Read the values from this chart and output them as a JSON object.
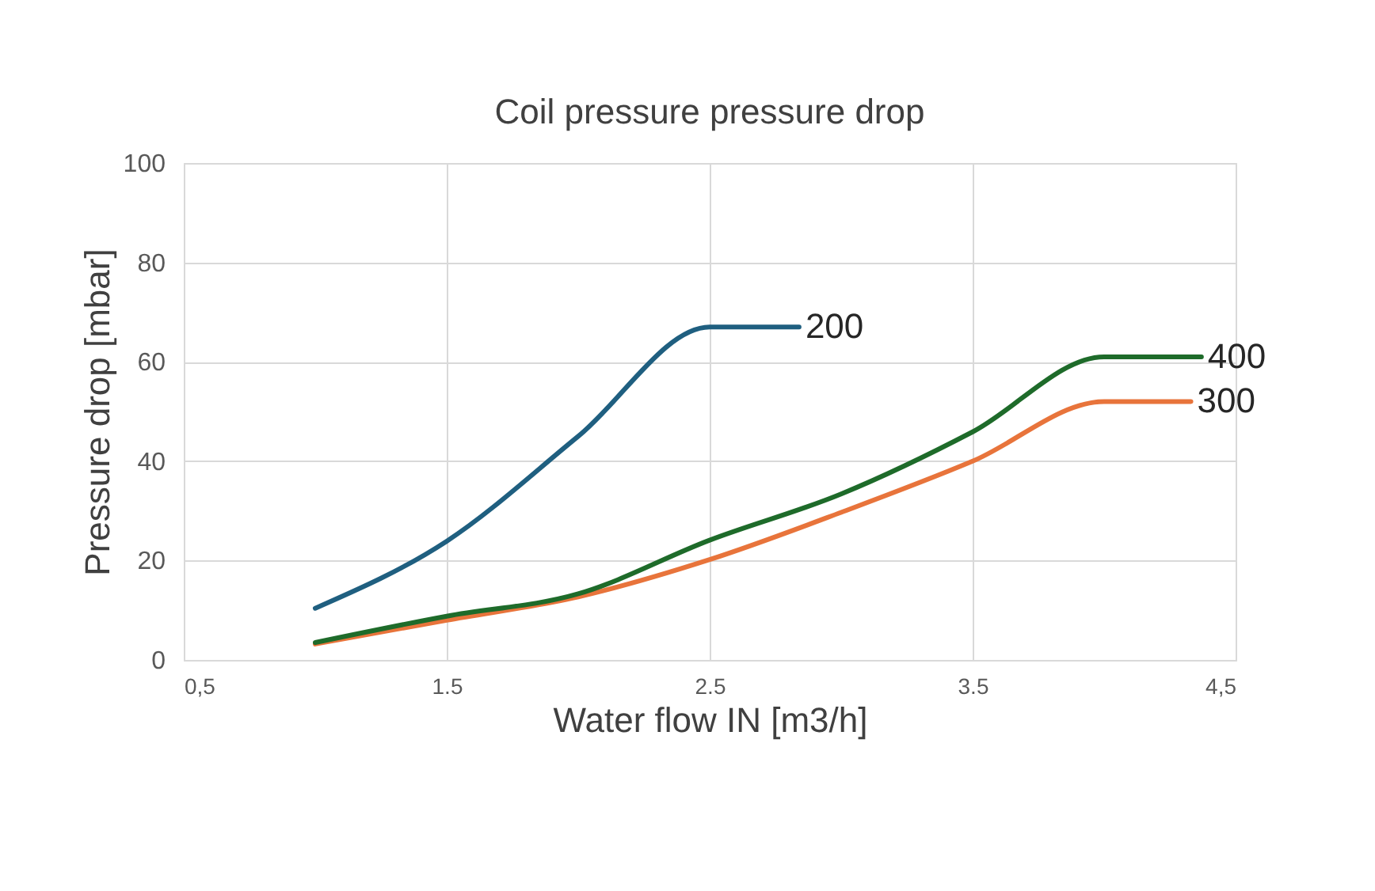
{
  "chart_data": {
    "type": "line",
    "title": "Coil pressure pressure drop",
    "xlabel": "Water flow IN [m3/h]",
    "ylabel": "Pressure drop [mbar]",
    "xlim": [
      0.5,
      4.5
    ],
    "xticks": [
      {
        "value": 0.5,
        "label": "0,5"
      },
      {
        "value": 1.5,
        "label": "1.5"
      },
      {
        "value": 2.5,
        "label": "2.5"
      },
      {
        "value": 3.5,
        "label": "3.5"
      },
      {
        "value": 4.5,
        "label": "4,5"
      }
    ],
    "ylim": [
      0,
      100
    ],
    "yticks": [
      0,
      20,
      40,
      60,
      80,
      100
    ],
    "grid": true,
    "legend": false,
    "marker": "none",
    "line_style": "solid",
    "series": [
      {
        "name": "200",
        "color": "#1f5f80",
        "x": [
          1.0,
          1.5,
          2.0,
          2.5,
          2.84
        ],
        "values": [
          10.4,
          23.9,
          45,
          67,
          67
        ]
      },
      {
        "name": "300",
        "color": "#e8743b",
        "x": [
          1.0,
          1.5,
          2.0,
          2.5,
          3.0,
          3.5,
          4.0,
          4.33
        ],
        "values": [
          3.2,
          8,
          12.7,
          20.2,
          29.7,
          40,
          52,
          52
        ]
      },
      {
        "name": "400",
        "color": "#1e6b2a",
        "x": [
          1.0,
          1.5,
          2.0,
          2.5,
          3.0,
          3.5,
          4.0,
          4.37
        ],
        "values": [
          3.5,
          8.8,
          13.3,
          24.1,
          33.4,
          45.9,
          61,
          61
        ]
      }
    ]
  }
}
